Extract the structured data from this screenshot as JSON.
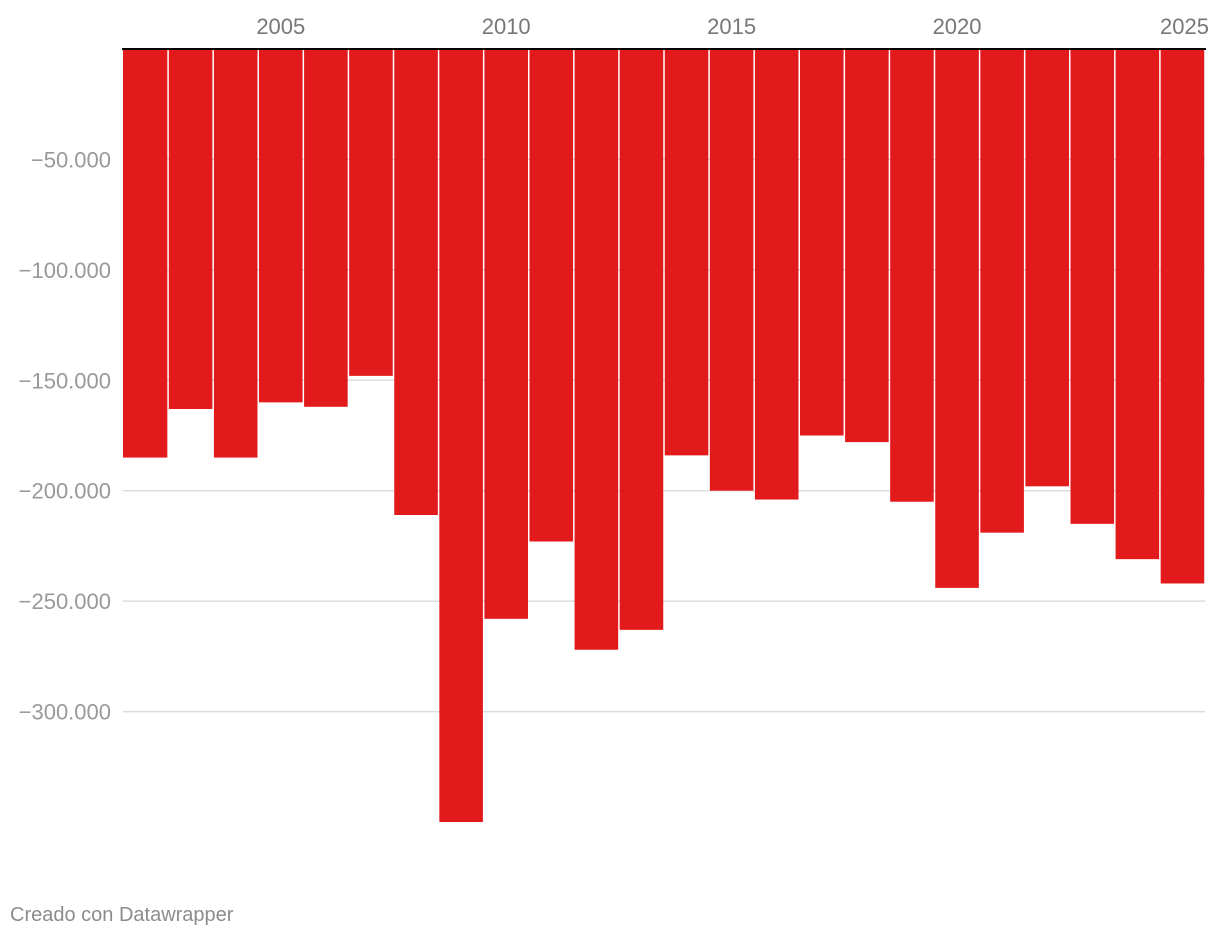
{
  "chart_data": {
    "type": "bar",
    "categories": [
      "2002",
      "2003",
      "2004",
      "2005",
      "2006",
      "2007",
      "2008",
      "2009",
      "2010",
      "2011",
      "2012",
      "2013",
      "2014",
      "2015",
      "2016",
      "2017",
      "2018",
      "2019",
      "2020",
      "2021",
      "2022",
      "2023",
      "2024",
      "2025"
    ],
    "values": [
      -185000,
      -163000,
      -185000,
      -160000,
      -162000,
      -148000,
      -211000,
      -350000,
      -258000,
      -223000,
      -272000,
      -263000,
      -184000,
      -200000,
      -204000,
      -175000,
      -178000,
      -205000,
      -244000,
      -219000,
      -198000,
      -215000,
      -231000,
      -242000
    ],
    "x_tick_labels": [
      "2005",
      "2010",
      "2015",
      "2020",
      "2025"
    ],
    "y_tick_values": [
      -50000,
      -100000,
      -150000,
      -200000,
      -250000,
      -300000
    ],
    "y_tick_labels": [
      "−50.000",
      "−100.000",
      "−150.000",
      "−200.000",
      "−250.000",
      "−300.000"
    ],
    "ylim": [
      -350000,
      0
    ],
    "grid": true,
    "bar_color": "#e31a1c",
    "title": "",
    "xlabel": "",
    "ylabel": ""
  },
  "footer": {
    "credit": "Creado con Datawrapper"
  }
}
